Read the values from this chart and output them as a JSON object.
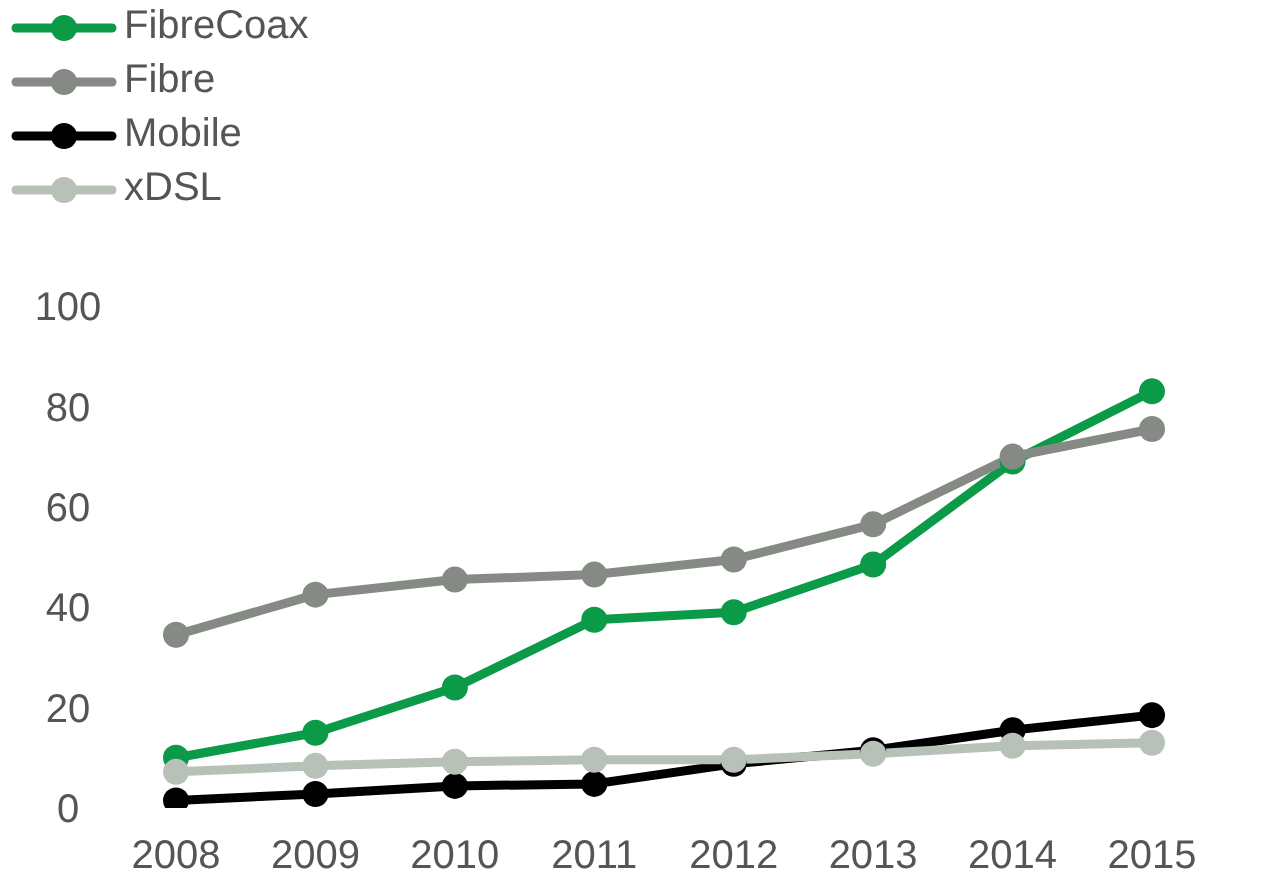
{
  "chart_data": {
    "type": "line",
    "categories": [
      "2008",
      "2009",
      "2010",
      "2011",
      "2012",
      "2013",
      "2014",
      "2015"
    ],
    "series": [
      {
        "name": "FibreCoax",
        "color": "#0a9a48",
        "values": [
          10,
          15,
          24,
          37.5,
          39,
          48.5,
          69,
          83
        ]
      },
      {
        "name": "Fibre",
        "color": "#868a85",
        "values": [
          34.5,
          42.5,
          45.5,
          46.5,
          49.5,
          56.5,
          70,
          75.5
        ]
      },
      {
        "name": "Mobile",
        "color": "#000000",
        "values": [
          1.5,
          2.8,
          4.4,
          4.8,
          8.8,
          11.5,
          15.5,
          18.5
        ]
      },
      {
        "name": "xDSL",
        "color": "#b7c1b7",
        "values": [
          7.2,
          8.4,
          9.2,
          9.6,
          9.6,
          10.8,
          12.4,
          13
        ]
      }
    ],
    "ylim": [
      0,
      100
    ],
    "yticks": [
      0,
      20,
      40,
      60,
      80,
      100
    ],
    "grid": false,
    "legend": "top left",
    "marker": "circle",
    "line_style": "solid"
  }
}
